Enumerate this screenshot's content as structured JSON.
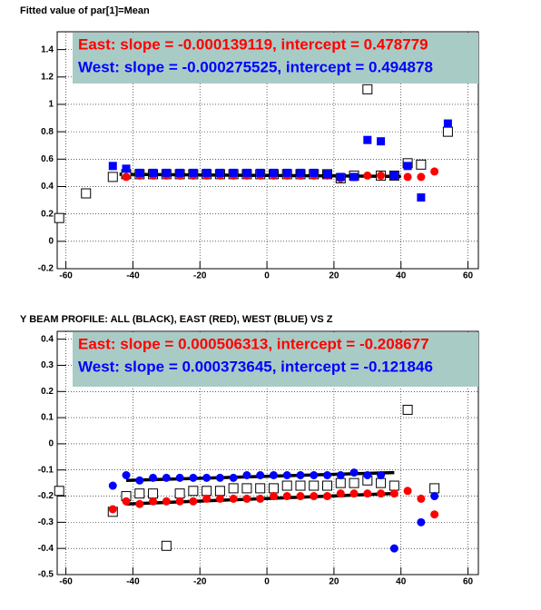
{
  "chart_data": [
    {
      "type": "scatter",
      "title": "Fitted value of par[1]=Mean",
      "x": [
        -62,
        -58,
        -54,
        -50,
        -46,
        -42,
        -38,
        -34,
        -30,
        -26,
        -22,
        -18,
        -14,
        -10,
        -6,
        -2,
        2,
        6,
        10,
        14,
        18,
        22,
        26,
        30,
        34,
        38,
        42,
        46,
        50,
        54
      ],
      "series": [
        {
          "color": "#000000",
          "marker": "open-square",
          "values": [
            0.17,
            null,
            0.35,
            null,
            0.47,
            0.49,
            0.49,
            0.49,
            0.49,
            0.49,
            0.49,
            0.49,
            0.49,
            0.49,
            0.49,
            0.49,
            0.49,
            0.49,
            0.49,
            0.49,
            0.49,
            0.46,
            0.48,
            1.11,
            0.48,
            0.48,
            0.57,
            0.56,
            null,
            0.8
          ]
        },
        {
          "color": "#ff0000",
          "marker": "circle",
          "values": [
            null,
            null,
            null,
            null,
            null,
            0.47,
            0.48,
            0.48,
            0.48,
            0.48,
            0.48,
            0.48,
            0.48,
            0.48,
            0.48,
            0.48,
            0.48,
            0.48,
            0.48,
            0.48,
            0.48,
            0.46,
            0.47,
            0.48,
            0.48,
            0.48,
            0.47,
            0.47,
            0.51,
            null
          ]
        },
        {
          "color": "#0000ff",
          "marker": "square",
          "values": [
            null,
            null,
            null,
            null,
            0.55,
            0.53,
            0.5,
            0.5,
            0.5,
            0.5,
            0.5,
            0.5,
            0.5,
            0.5,
            0.5,
            0.5,
            0.5,
            0.5,
            0.5,
            0.5,
            0.49,
            0.47,
            0.47,
            0.74,
            0.73,
            0.48,
            0.55,
            0.32,
            null,
            0.86
          ]
        }
      ],
      "fits": [
        {
          "color": "#000000",
          "x": [
            -44,
            40
          ],
          "values": [
            0.489,
            0.474
          ]
        }
      ],
      "annotations": [
        {
          "text": "East: slope = -0.000139119, intercept = 0.478779",
          "color": "#ff0000"
        },
        {
          "text": "West: slope = -0.000275525, intercept = 0.494878",
          "color": "#0000ff"
        }
      ],
      "xlim": [
        -62.6,
        63.1
      ],
      "xticks": [
        -60,
        -40,
        -20,
        0,
        20,
        40,
        60
      ],
      "ylim": [
        -0.2,
        1.53
      ],
      "yticks": [
        -0.2,
        0,
        0.2,
        0.4,
        0.6,
        0.8,
        1,
        1.2,
        1.4
      ],
      "grid": true
    },
    {
      "type": "scatter",
      "title": "Y BEAM PROFILE: ALL (BLACK), EAST (RED), WEST (BLUE) VS Z",
      "x": [
        -62,
        -58,
        -54,
        -50,
        -46,
        -42,
        -38,
        -34,
        -30,
        -26,
        -22,
        -18,
        -14,
        -10,
        -6,
        -2,
        2,
        6,
        10,
        14,
        18,
        22,
        26,
        30,
        34,
        38,
        42,
        46,
        50,
        54
      ],
      "series": [
        {
          "color": "#000000",
          "marker": "open-square",
          "values": [
            -0.18,
            null,
            null,
            null,
            -0.26,
            -0.2,
            -0.19,
            -0.19,
            -0.39,
            -0.19,
            -0.18,
            -0.18,
            -0.18,
            -0.17,
            -0.17,
            -0.17,
            -0.17,
            -0.16,
            -0.16,
            -0.16,
            -0.16,
            -0.15,
            -0.15,
            -0.14,
            -0.15,
            -0.16,
            0.13,
            null,
            -0.17,
            null
          ]
        },
        {
          "color": "#ff0000",
          "marker": "circle",
          "values": [
            null,
            null,
            null,
            null,
            -0.25,
            -0.22,
            -0.23,
            -0.22,
            -0.22,
            -0.22,
            -0.22,
            -0.21,
            -0.21,
            -0.21,
            -0.21,
            -0.21,
            -0.2,
            -0.2,
            -0.2,
            -0.2,
            -0.2,
            -0.19,
            -0.19,
            -0.19,
            -0.19,
            -0.19,
            -0.18,
            -0.21,
            -0.27,
            null
          ]
        },
        {
          "color": "#0000ff",
          "marker": "circle",
          "values": [
            null,
            null,
            null,
            null,
            -0.16,
            -0.12,
            -0.14,
            -0.13,
            -0.13,
            -0.13,
            -0.13,
            -0.13,
            -0.13,
            -0.13,
            -0.12,
            -0.12,
            -0.12,
            -0.12,
            -0.12,
            -0.12,
            -0.12,
            -0.12,
            -0.11,
            -0.12,
            -0.12,
            -0.4,
            null,
            -0.3,
            -0.2,
            null
          ]
        }
      ],
      "fits": [
        {
          "color": "#000000",
          "x": [
            -42,
            38
          ],
          "values": [
            -0.14,
            -0.11
          ]
        },
        {
          "color": "#000000",
          "x": [
            -42,
            38
          ],
          "values": [
            -0.23,
            -0.19
          ]
        }
      ],
      "annotations": [
        {
          "text": "East: slope = 0.000506313, intercept = -0.208677",
          "color": "#ff0000"
        },
        {
          "text": "West: slope = 0.000373645, intercept = -0.121846",
          "color": "#0000ff"
        }
      ],
      "xlim": [
        -62.6,
        63.1
      ],
      "xticks": [
        -60,
        -40,
        -20,
        0,
        20,
        40,
        60
      ],
      "ylim": [
        -0.5,
        0.43
      ],
      "yticks": [
        -0.5,
        -0.4,
        -0.3,
        -0.2,
        -0.1,
        0,
        0.1,
        0.2,
        0.3,
        0.4
      ],
      "grid": true
    }
  ]
}
